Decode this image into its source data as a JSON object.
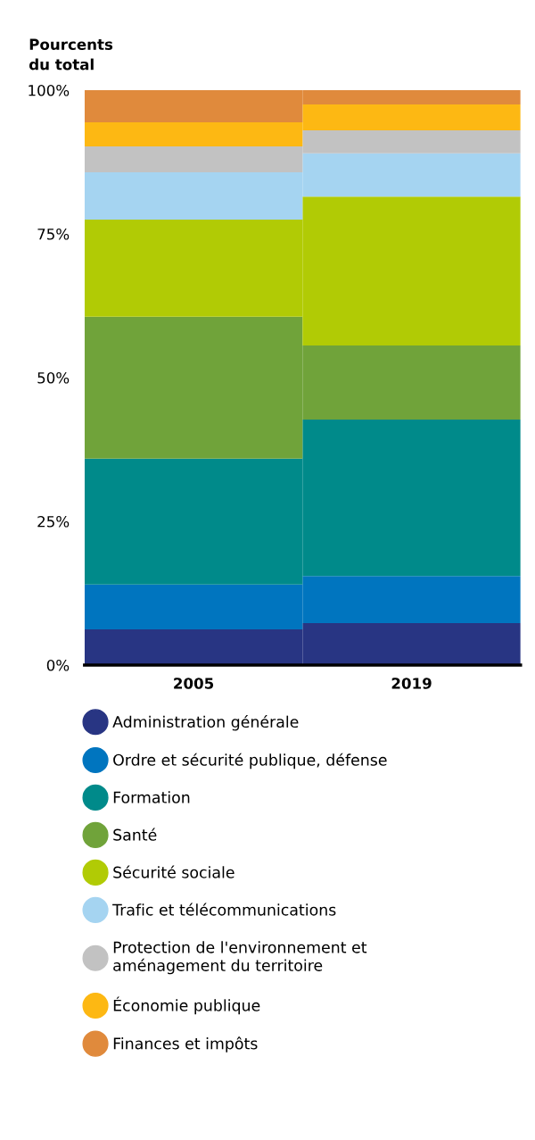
{
  "chart_data": {
    "type": "bar",
    "stacked": true,
    "ylabel": "Pourcents\ndu total",
    "categories": [
      "2005",
      "2019"
    ],
    "ylim": [
      0,
      100
    ],
    "yticks": [
      {
        "value": 0,
        "label": "0%"
      },
      {
        "value": 25,
        "label": "25%"
      },
      {
        "value": 50,
        "label": "50%"
      },
      {
        "value": 75,
        "label": "75%"
      },
      {
        "value": 100,
        "label": "100%"
      }
    ],
    "grid": false,
    "legend": "bottom",
    "series": [
      {
        "name": "Administration générale",
        "color": "#283583",
        "values": [
          6.2,
          7.3
        ]
      },
      {
        "name": "Ordre et sécurité publique, défense",
        "color": "#0075bf",
        "values": [
          7.8,
          8.2
        ]
      },
      {
        "name": "Formation",
        "color": "#008a8a",
        "values": [
          21.9,
          27.2
        ]
      },
      {
        "name": "Santé",
        "color": "#70a33a",
        "values": [
          24.7,
          12.9
        ]
      },
      {
        "name": "Sécurité sociale",
        "color": "#b1cb05",
        "values": [
          16.9,
          25.9
        ]
      },
      {
        "name": "Trafic et télécommunications",
        "color": "#a5d4f1",
        "values": [
          8.2,
          7.5
        ]
      },
      {
        "name": "Protection de l'environnement et\naménagement du territoire",
        "color": "#c2c2c2",
        "values": [
          4.5,
          4.0
        ]
      },
      {
        "name": "Économie publique",
        "color": "#fdb813",
        "values": [
          4.2,
          4.5
        ]
      },
      {
        "name": "Finances et impôts",
        "color": "#e08a3c",
        "values": [
          5.6,
          2.5
        ]
      }
    ]
  }
}
